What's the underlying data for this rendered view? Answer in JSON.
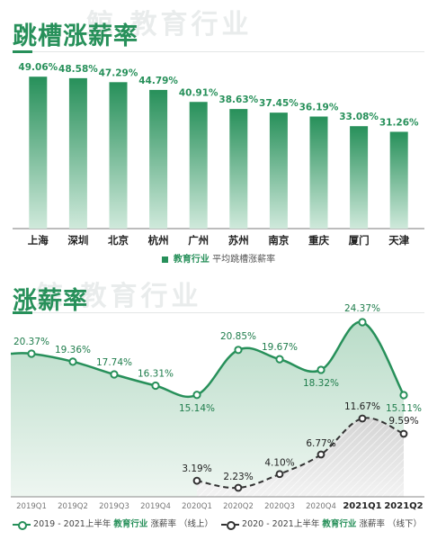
{
  "watermark": "鲸 教育行业",
  "panel1": {
    "title": "跳槽涨薪率",
    "legend": {
      "industry": "教育行业",
      "label": "平均跳槽涨薪率"
    }
  },
  "panel2": {
    "title": "涨薪率",
    "legend": [
      {
        "period": "2019 - 2021上半年",
        "industry": "教育行业",
        "label": "涨薪率",
        "mode": "（线上）"
      },
      {
        "period": "2020 - 2021上半年",
        "industry": "教育行业",
        "label": "涨薪率",
        "mode": "（线下）"
      }
    ]
  },
  "colors": {
    "accent": "#27905a",
    "dark_series": "#333333"
  },
  "chart_data": [
    {
      "type": "bar",
      "title": "跳槽涨薪率",
      "categories": [
        "上海",
        "深圳",
        "北京",
        "杭州",
        "广州",
        "苏州",
        "南京",
        "重庆",
        "厦门",
        "天津"
      ],
      "values": [
        49.06,
        48.58,
        47.29,
        44.79,
        40.91,
        38.63,
        37.45,
        36.19,
        33.08,
        31.26
      ],
      "value_labels": [
        "49.06%",
        "48.58%",
        "47.29%",
        "44.79%",
        "40.91%",
        "38.63%",
        "37.45%",
        "36.19%",
        "33.08%",
        "31.26%"
      ],
      "series_name": "教育行业 平均跳槽涨薪率",
      "ylim": [
        0,
        52
      ],
      "grid": false,
      "legend": "bottom"
    },
    {
      "type": "area",
      "title": "涨薪率",
      "categories": [
        "2019Q1",
        "2019Q2",
        "2019Q3",
        "2019Q4",
        "2020Q1",
        "2020Q2",
        "2020Q3",
        "2020Q4",
        "2021Q1",
        "2021Q2"
      ],
      "series": [
        {
          "name": "2019 - 2021上半年 教育行业 涨薪率（线上）",
          "values": [
            20.37,
            19.36,
            17.74,
            16.31,
            15.14,
            20.85,
            19.67,
            18.32,
            24.37,
            15.11
          ],
          "labels": [
            "20.37%",
            "19.36%",
            "17.74%",
            "16.31%",
            "15.14%",
            "20.85%",
            "19.67%",
            "18.32%",
            "24.37%",
            "15.11%"
          ],
          "style": "solid"
        },
        {
          "name": "2020 - 2021上半年 教育行业 涨薪率（线下）",
          "values": [
            null,
            null,
            null,
            null,
            3.19,
            2.23,
            4.1,
            6.77,
            11.67,
            9.59
          ],
          "labels": [
            null,
            null,
            null,
            null,
            "3.19%",
            "2.23%",
            "4.10%",
            "6.77%",
            "11.67%",
            "9.59%"
          ],
          "style": "dashed"
        }
      ],
      "bold_categories": [
        "2021Q1",
        "2021Q2"
      ],
      "grid": false,
      "legend": "bottom"
    }
  ]
}
